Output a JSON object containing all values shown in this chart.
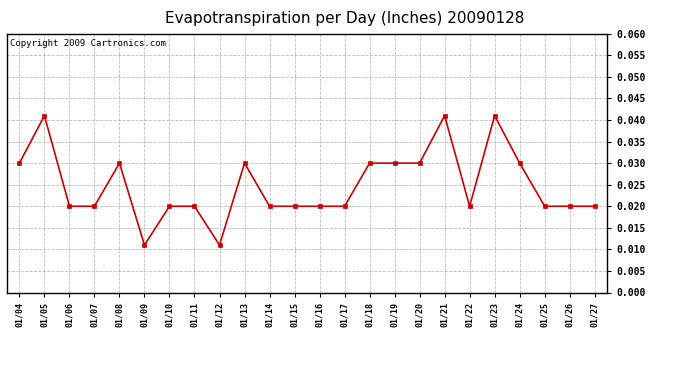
{
  "title": "Evapotranspiration per Day (Inches) 20090128",
  "copyright_text": "Copyright 2009 Cartronics.com",
  "x_labels": [
    "01/04",
    "01/05",
    "01/06",
    "01/07",
    "01/08",
    "01/09",
    "01/10",
    "01/11",
    "01/12",
    "01/13",
    "01/14",
    "01/15",
    "01/16",
    "01/17",
    "01/18",
    "01/19",
    "01/20",
    "01/21",
    "01/22",
    "01/23",
    "01/24",
    "01/25",
    "01/26",
    "01/27"
  ],
  "y_values": [
    0.03,
    0.041,
    0.02,
    0.02,
    0.03,
    0.011,
    0.02,
    0.02,
    0.011,
    0.03,
    0.02,
    0.02,
    0.02,
    0.02,
    0.03,
    0.03,
    0.03,
    0.041,
    0.02,
    0.041,
    0.03,
    0.02,
    0.02,
    0.02
  ],
  "line_color": "#cc0000",
  "marker_color": "#cc0000",
  "background_color": "#ffffff",
  "grid_color": "#aaaaaa",
  "ylim_min": 0.0,
  "ylim_max": 0.06,
  "ytick_step": 0.005,
  "title_fontsize": 11,
  "copyright_fontsize": 6.5
}
